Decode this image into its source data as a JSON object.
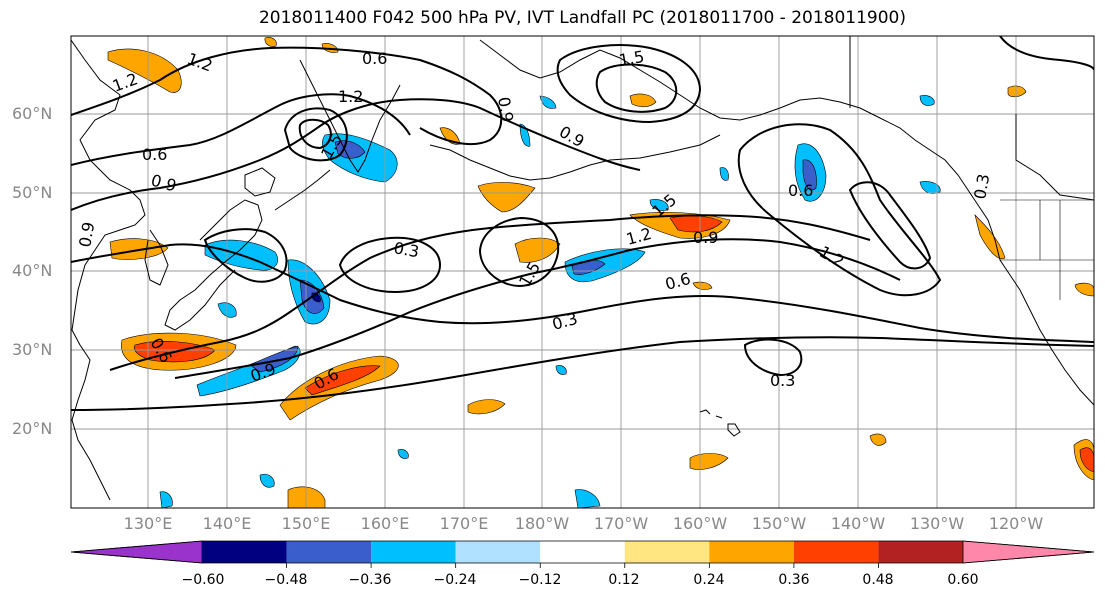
{
  "title": "2018011400 F042 500 hPa PV, IVT Landfall PC (2018011700 - 2018011900)",
  "latitudes": [
    "60°N",
    "50°N",
    "40°N",
    "30°N",
    "20°N"
  ],
  "longitudes": [
    "130°E",
    "140°E",
    "150°E",
    "160°E",
    "170°E",
    "180°W",
    "170°W",
    "160°W",
    "150°W",
    "140°W",
    "130°W",
    "120°W"
  ],
  "colorbar": {
    "ticks": [
      "−0.60",
      "−0.48",
      "−0.36",
      "−0.24",
      "−0.12",
      "0.12",
      "0.24",
      "0.36",
      "0.48",
      "0.60"
    ],
    "colors": [
      "#9933cc",
      "#000080",
      "#3a5fcd",
      "#00bfff",
      "#b0e2ff",
      "#ffffff",
      "#ffe680",
      "#ffa500",
      "#ff4000",
      "#b22222",
      "#ff88aa"
    ]
  },
  "contour_labels": [
    "1.2",
    "0.6",
    "1.2",
    "1.2",
    "0.6",
    "0.9",
    "0.9",
    "1.5",
    "0.9",
    "1.5",
    "0.3",
    "1.2",
    "0.9",
    "1.5",
    "0.6",
    "0.3",
    "0.6",
    "0.9",
    "0.6",
    "0.3",
    "1.2",
    "0.6",
    "1.5",
    "0.9",
    "0.3"
  ]
}
